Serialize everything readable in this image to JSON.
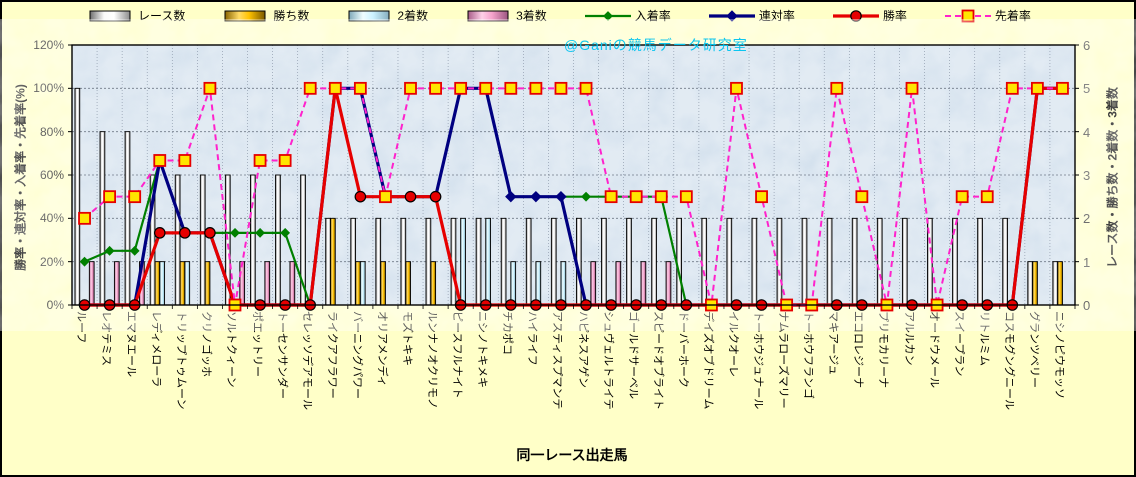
{
  "watermark": "@Ganiの競馬データ研究室",
  "x_axis_title": "同一レース出走馬",
  "left_axis": {
    "title": "勝率・連対率・入着率・先着率(%)",
    "ticks": [
      "120%",
      "100%",
      "80%",
      "60%",
      "40%",
      "20%",
      "0%"
    ]
  },
  "right_axis": {
    "title": "レース数・勝ち数・2着数・3着数",
    "ticks": [
      "6",
      "5",
      "4",
      "3",
      "2",
      "1",
      "0"
    ]
  },
  "legend": [
    {
      "label": "レース数",
      "swatch": "bar",
      "series": 0
    },
    {
      "label": "勝ち数",
      "swatch": "bar",
      "series": 1
    },
    {
      "label": "2着数",
      "swatch": "bar",
      "series": 2
    },
    {
      "label": "3着数",
      "swatch": "bar",
      "series": 3
    },
    {
      "label": "入着率",
      "swatch": "line",
      "series": 4
    },
    {
      "label": "連対率",
      "swatch": "line",
      "series": 5
    },
    {
      "label": "勝率",
      "swatch": "line",
      "series": 6
    },
    {
      "label": "先着率",
      "swatch": "line",
      "series": 7
    }
  ],
  "colors": {
    "background": "#FFFFC8",
    "plot_bg": "#CBDBEA",
    "grid": "#8E9AAB",
    "border": "#000000",
    "races_bar": "#FFFFFF",
    "wins_bar": "#FFC200",
    "seconds_bar": "#CCF2FF",
    "thirds_bar": "#F5A3CC",
    "nyuchaku_line": "#008000",
    "rentai_line": "#000080",
    "shoritsu_line": "#E60000",
    "senchaku_line": "#FF22CC",
    "senchaku_marker_fill": "#FFE600",
    "watermark": "#00C3EF"
  },
  "chart_data": {
    "type": "bar",
    "subtype": "combo-bar-line-dual-axis",
    "title": "",
    "xlabel": "同一レース出走馬",
    "ylabel_left": "勝率・連対率・入着率・先着率(%)",
    "ylabel_right": "レース数・勝ち数・2着数・3着数",
    "left_ylim": [
      0,
      120
    ],
    "right_ylim": [
      0,
      6
    ],
    "grid": true,
    "legend_position": "top",
    "categories": [
      "ルーフ",
      "レオテミス",
      "エマヌエール",
      "レディメローラ",
      "トリップトゥムーン",
      "クリノゴッホ",
      "ソルトクィーン",
      "ポエットリー",
      "トーセンサンダー",
      "セレッソデアモール",
      "ライクアフラワー",
      "バーニングパワー",
      "オリアメンディ",
      "モズトキキ",
      "ルンナノオクリモノ",
      "ピースフルナイト",
      "ニシノトキメキ",
      "チカポコ",
      "ハイライフ",
      "アスティスプマンテ",
      "ハピネスアゲン",
      "シュヴェルトライテ",
      "ゴールドサーベル",
      "スピードオブライト",
      "ドーバーホーク",
      "デイズオブドリーム",
      "イルクオーレ",
      "トーホウジュナール",
      "ナムラローズマリー",
      "トーホウフランゴ",
      "マキアージュ",
      "エコロレジーナ",
      "プリモカリーナ",
      "アルルカン",
      "オードウメール",
      "スイープラン",
      "リトルミム",
      "コスモグングニール",
      "グランツベリー",
      "ニシノピウモッソ"
    ],
    "series": [
      {
        "name": "レース数",
        "type": "bar",
        "axis": "right",
        "values": [
          5,
          4,
          4,
          3,
          3,
          3,
          3,
          3,
          3,
          3,
          2,
          2,
          2,
          2,
          2,
          2,
          2,
          2,
          2,
          2,
          2,
          2,
          2,
          2,
          2,
          2,
          2,
          2,
          2,
          2,
          2,
          2,
          2,
          2,
          2,
          2,
          2,
          2,
          1,
          1
        ]
      },
      {
        "name": "勝ち数",
        "type": "bar",
        "axis": "right",
        "values": [
          0,
          0,
          0,
          1,
          1,
          1,
          0,
          0,
          0,
          0,
          2,
          1,
          1,
          1,
          1,
          0,
          0,
          0,
          0,
          0,
          0,
          0,
          0,
          0,
          0,
          0,
          0,
          0,
          0,
          0,
          0,
          0,
          0,
          0,
          0,
          0,
          0,
          0,
          1,
          1
        ]
      },
      {
        "name": "2着数",
        "type": "bar",
        "axis": "right",
        "values": [
          0,
          0,
          0,
          1,
          1,
          0,
          0,
          0,
          0,
          0,
          0,
          1,
          0,
          0,
          0,
          2,
          2,
          1,
          1,
          1,
          0,
          0,
          0,
          0,
          0,
          0,
          0,
          0,
          0,
          0,
          0,
          0,
          0,
          0,
          0,
          0,
          0,
          0,
          0,
          0
        ]
      },
      {
        "name": "3着数",
        "type": "bar",
        "axis": "right",
        "values": [
          1,
          1,
          1,
          0,
          0,
          0,
          1,
          1,
          1,
          0,
          0,
          0,
          0,
          0,
          0,
          0,
          0,
          0,
          0,
          0,
          1,
          1,
          1,
          1,
          0,
          0,
          0,
          0,
          0,
          0,
          0,
          0,
          0,
          0,
          0,
          0,
          0,
          0,
          0,
          0
        ]
      },
      {
        "name": "入着率",
        "type": "line",
        "marker": "diamond",
        "axis": "left",
        "values": [
          20,
          25,
          25,
          66.7,
          33.3,
          33.3,
          33.3,
          33.3,
          33.3,
          0,
          100,
          100,
          50,
          50,
          50,
          100,
          100,
          50,
          50,
          50,
          50,
          50,
          50,
          50,
          0,
          0,
          0,
          0,
          0,
          0,
          0,
          0,
          0,
          0,
          0,
          0,
          0,
          0,
          100,
          100
        ]
      },
      {
        "name": "連対率",
        "type": "line",
        "marker": "diamond",
        "axis": "left",
        "values": [
          0,
          0,
          0,
          66.7,
          33.3,
          33.3,
          0,
          0,
          0,
          0,
          100,
          100,
          50,
          50,
          50,
          100,
          100,
          50,
          50,
          50,
          0,
          0,
          0,
          0,
          0,
          0,
          0,
          0,
          0,
          0,
          0,
          0,
          0,
          0,
          0,
          0,
          0,
          0,
          100,
          100
        ]
      },
      {
        "name": "勝率",
        "type": "line",
        "marker": "circle",
        "axis": "left",
        "values": [
          0,
          0,
          0,
          33.3,
          33.3,
          33.3,
          0,
          0,
          0,
          0,
          100,
          50,
          50,
          50,
          50,
          0,
          0,
          0,
          0,
          0,
          0,
          0,
          0,
          0,
          0,
          0,
          0,
          0,
          0,
          0,
          0,
          0,
          0,
          0,
          0,
          0,
          0,
          0,
          100,
          100
        ]
      },
      {
        "name": "先着率",
        "type": "line-dashed",
        "marker": "square",
        "axis": "left",
        "values": [
          40,
          50,
          50,
          66.7,
          66.7,
          100,
          0,
          66.7,
          66.7,
          100,
          100,
          100,
          50,
          100,
          100,
          100,
          100,
          100,
          100,
          100,
          100,
          50,
          50,
          50,
          50,
          0,
          100,
          50,
          0,
          0,
          100,
          50,
          0,
          100,
          0,
          50,
          50,
          100,
          100,
          100
        ]
      }
    ]
  }
}
